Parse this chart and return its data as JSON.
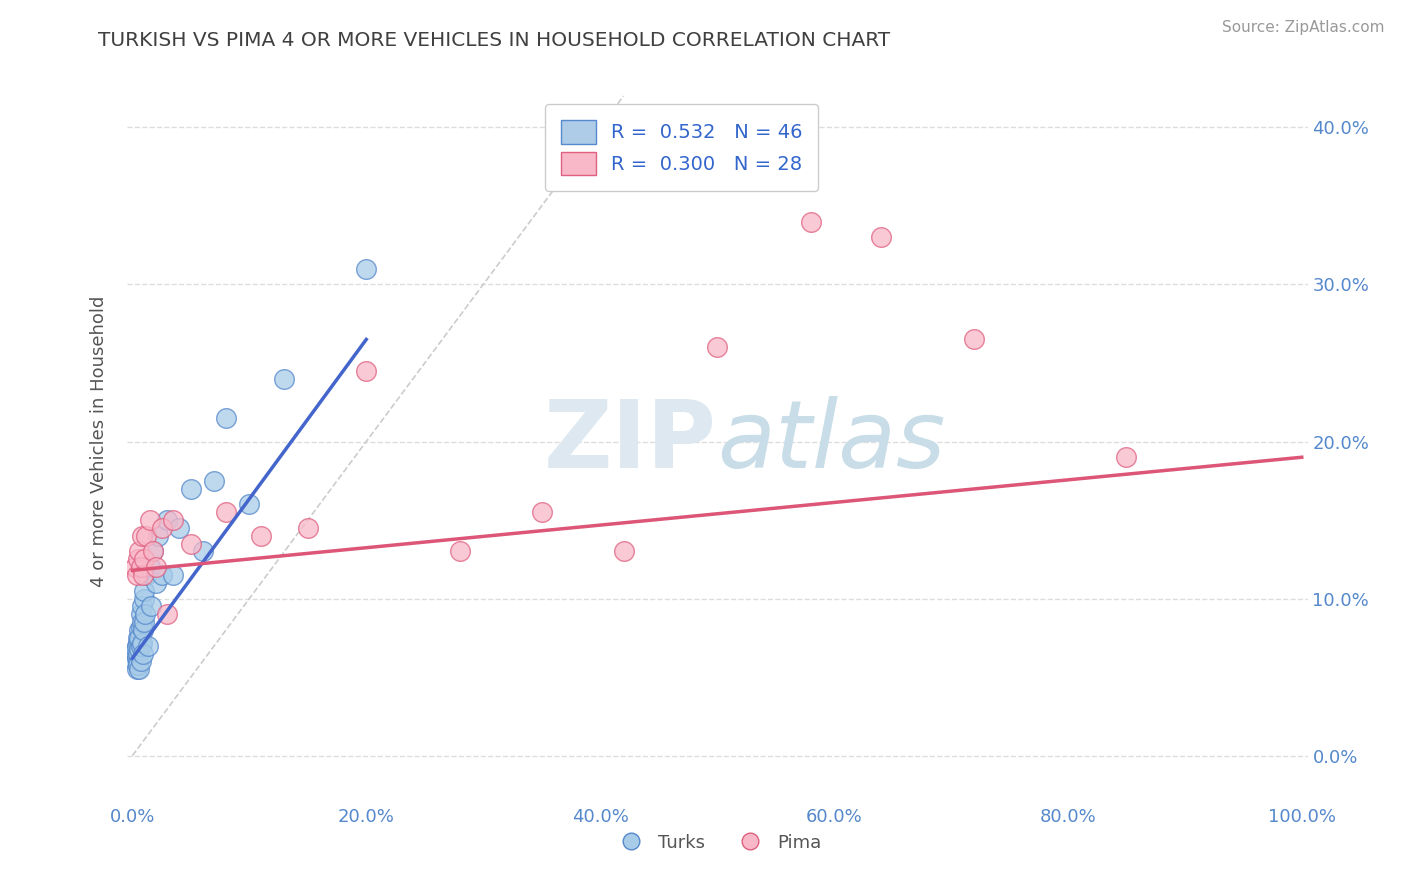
{
  "title": "TURKISH VS PIMA 4 OR MORE VEHICLES IN HOUSEHOLD CORRELATION CHART",
  "source": "Source: ZipAtlas.com",
  "ylabel": "4 or more Vehicles in Household",
  "xlim": [
    -0.005,
    1.005
  ],
  "ylim": [
    -0.03,
    0.43
  ],
  "watermark_zip": "ZIP",
  "watermark_atlas": "atlas",
  "legend_r": [
    {
      "label": "R =  0.532   N = 46",
      "facecolor": "#aecce8"
    },
    {
      "label": "R =  0.300   N = 28",
      "facecolor": "#f8b8c8"
    }
  ],
  "legend_labels": [
    "Turks",
    "Pima"
  ],
  "turks_fill": "#a8cce8",
  "turks_edge": "#5588cc",
  "pima_fill": "#f8b8c8",
  "pima_edge": "#e06080",
  "turks_line_color": "#4466cc",
  "pima_line_color": "#dd5577",
  "diagonal_color": "#cccccc",
  "background_color": "#ffffff",
  "grid_color": "#dddddd",
  "title_color": "#404040",
  "tick_color": "#5588cc",
  "source_color": "#999999",
  "turks_x": [
    0.002,
    0.003,
    0.003,
    0.004,
    0.004,
    0.004,
    0.005,
    0.005,
    0.005,
    0.005,
    0.005,
    0.006,
    0.006,
    0.006,
    0.006,
    0.007,
    0.007,
    0.007,
    0.007,
    0.008,
    0.008,
    0.008,
    0.009,
    0.009,
    0.01,
    0.01,
    0.01,
    0.011,
    0.012,
    0.013,
    0.015,
    0.016,
    0.018,
    0.02,
    0.022,
    0.025,
    0.03,
    0.035,
    0.04,
    0.05,
    0.06,
    0.07,
    0.08,
    0.1,
    0.13,
    0.2
  ],
  "turks_y": [
    0.06,
    0.065,
    0.068,
    0.062,
    0.07,
    0.055,
    0.072,
    0.06,
    0.065,
    0.058,
    0.075,
    0.08,
    0.055,
    0.068,
    0.075,
    0.082,
    0.06,
    0.09,
    0.07,
    0.085,
    0.072,
    0.095,
    0.08,
    0.065,
    0.1,
    0.085,
    0.105,
    0.09,
    0.115,
    0.07,
    0.12,
    0.095,
    0.13,
    0.11,
    0.14,
    0.115,
    0.15,
    0.115,
    0.145,
    0.17,
    0.13,
    0.175,
    0.215,
    0.16,
    0.24,
    0.31
  ],
  "pima_x": [
    0.002,
    0.004,
    0.005,
    0.006,
    0.007,
    0.008,
    0.009,
    0.01,
    0.012,
    0.015,
    0.018,
    0.02,
    0.025,
    0.03,
    0.035,
    0.05,
    0.08,
    0.11,
    0.15,
    0.2,
    0.28,
    0.35,
    0.42,
    0.5,
    0.58,
    0.64,
    0.72,
    0.85
  ],
  "pima_y": [
    0.12,
    0.115,
    0.125,
    0.13,
    0.12,
    0.14,
    0.115,
    0.125,
    0.14,
    0.15,
    0.13,
    0.12,
    0.145,
    0.09,
    0.15,
    0.135,
    0.155,
    0.14,
    0.145,
    0.245,
    0.13,
    0.155,
    0.13,
    0.26,
    0.34,
    0.33,
    0.265,
    0.19
  ],
  "turks_trend_x": [
    0.0,
    0.2
  ],
  "turks_trend_y": [
    0.062,
    0.265
  ],
  "pima_trend_x": [
    0.0,
    1.0
  ],
  "pima_trend_y": [
    0.118,
    0.19
  ]
}
